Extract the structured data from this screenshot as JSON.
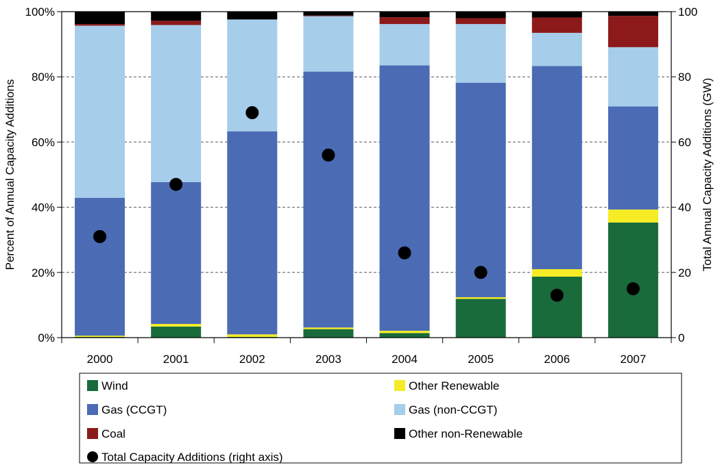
{
  "chart_data": {
    "type": "bar",
    "stacked": true,
    "categories": [
      "2000",
      "2001",
      "2002",
      "2003",
      "2004",
      "2005",
      "2006",
      "2007"
    ],
    "ylabel": "Percent of Annual Capacity Additions",
    "y2label": "Total Annual Capacity Additions (GW)",
    "ylim": [
      0,
      100
    ],
    "y2lim": [
      0,
      100
    ],
    "yticks": [
      "0%",
      "20%",
      "40%",
      "60%",
      "80%",
      "100%"
    ],
    "y2ticks": [
      "0",
      "20",
      "40",
      "60",
      "80",
      "100"
    ],
    "grid": "horizontal dashed",
    "legend": "bottom",
    "series": [
      {
        "name": "Wind",
        "color": "#1a6b3c",
        "values": [
          0.2,
          3.4,
          0.2,
          2.6,
          1.4,
          11.9,
          18.7,
          35.3
        ]
      },
      {
        "name": "Other Renewable",
        "color": "#f5ec26",
        "values": [
          0.4,
          0.8,
          0.8,
          0.5,
          0.7,
          0.5,
          2.3,
          4.0
        ]
      },
      {
        "name": "Gas (CCGT)",
        "color": "#4b6bb5",
        "values": [
          42.3,
          43.5,
          62.3,
          78.5,
          81.4,
          65.8,
          62.3,
          31.6
        ]
      },
      {
        "name": "Gas (non-CCGT)",
        "color": "#a6cdea",
        "values": [
          52.8,
          48.2,
          34.3,
          17.0,
          12.7,
          18.0,
          10.2,
          18.2
        ]
      },
      {
        "name": "Coal",
        "color": "#8c1a1a",
        "values": [
          0.5,
          1.3,
          0.0,
          0.2,
          2.1,
          1.8,
          4.7,
          9.6
        ]
      },
      {
        "name": "Other non-Renewable",
        "color": "#000000",
        "values": [
          3.8,
          2.8,
          2.4,
          1.2,
          1.7,
          2.0,
          1.8,
          1.3
        ]
      }
    ],
    "line_series": {
      "name": "Total Capacity Additions (right axis)",
      "axis": "right",
      "marker": "circle",
      "color": "#000000",
      "values": [
        31,
        47,
        69,
        56,
        26,
        20,
        13,
        15
      ]
    },
    "legend_items": [
      {
        "label": "Wind",
        "color": "#1a6b3c",
        "shape": "square"
      },
      {
        "label": "Other Renewable",
        "color": "#f5ec26",
        "shape": "square"
      },
      {
        "label": "Gas (CCGT)",
        "color": "#4b6bb5",
        "shape": "square"
      },
      {
        "label": "Gas (non-CCGT)",
        "color": "#a6cdea",
        "shape": "square"
      },
      {
        "label": "Coal",
        "color": "#8c1a1a",
        "shape": "square"
      },
      {
        "label": "Other non-Renewable",
        "color": "#000000",
        "shape": "square"
      },
      {
        "label": "Total Capacity Additions (right axis)",
        "color": "#000000",
        "shape": "circle"
      }
    ]
  }
}
